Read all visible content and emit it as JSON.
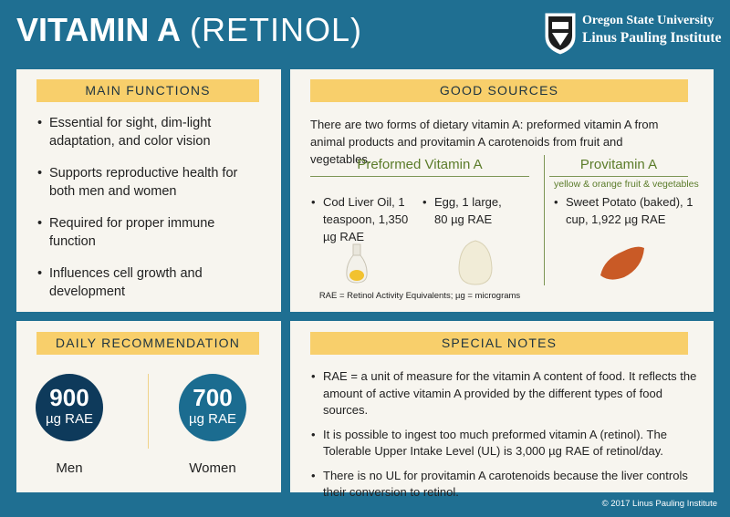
{
  "header": {
    "title": "VITAMIN A",
    "subtitle": "(RETINOL)",
    "logo": [
      "Oregon State University",
      "Linus Pauling Institute"
    ]
  },
  "main_functions": {
    "heading": "MAIN FUNCTIONS",
    "items": [
      "Essential for sight, dim-light adaptation, and color vision",
      "Supports reproductive health for both men and women",
      "Required for proper immune function",
      "Influences cell growth and development"
    ]
  },
  "good_sources": {
    "heading": "GOOD SOURCES",
    "intro": "There are two forms of dietary vitamin A: preformed vitamin A from animal products and provitamin A carotenoids from fruit and vegetables.",
    "preformed": {
      "heading": "Preformed Vitamin A",
      "items": [
        "Cod Liver Oil, 1 teaspoon, 1,350 µg RAE",
        "Egg, 1 large, 80 µg RAE"
      ]
    },
    "provitamin": {
      "heading": "Provitamin A",
      "note": "yellow & orange fruit & vegetables",
      "items": [
        "Sweet Potato (baked), 1 cup, 1,922 µg RAE"
      ]
    },
    "footnote": "RAE = Retinol Activity Equivalents; µg = micrograms"
  },
  "daily_recommendation": {
    "heading": "DAILY RECOMMENDATION",
    "men": {
      "value": 900,
      "unit": "µg RAE",
      "label": "Men"
    },
    "women": {
      "value": 700,
      "unit": "µg RAE",
      "label": "Women"
    }
  },
  "special_notes": {
    "heading": "SPECIAL NOTES",
    "items": [
      "RAE = a unit of measure for the vitamin A content of food. It reflects the amount of active vitamin A provided by the different types of food sources.",
      "It is possible to ingest too much preformed vitamin A (retinol). The Tolerable Upper Intake Level (UL) is 3,000 µg RAE of retinol/day.",
      "There is no UL for provitamin A carotenoids because the liver controls their conversion to retinol."
    ]
  },
  "footer": "© 2017 Linus Pauling Institute"
}
